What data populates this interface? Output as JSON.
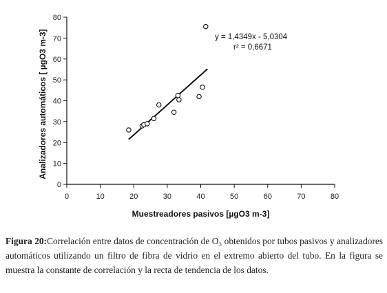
{
  "chart_data": {
    "type": "scatter",
    "title": "",
    "xlabel": "Muestreadores pasivos [µgO3 m-3]",
    "ylabel": "Analizadores automáticos [ µgO3 m-3]",
    "xlim": [
      0,
      80
    ],
    "ylim": [
      0,
      80
    ],
    "xticks": [
      "0",
      "10",
      "20",
      "30",
      "40",
      "50",
      "60",
      "70",
      "80"
    ],
    "yticks": [
      "0",
      "10",
      "20",
      "30",
      "40",
      "50",
      "60",
      "70",
      "80"
    ],
    "grid": false,
    "legend": "none",
    "series": [
      {
        "x": [
          18.5,
          22.5,
          23,
          24,
          26,
          27.5,
          32,
          33.2,
          33.5,
          39.5,
          40.5,
          41.5
        ],
        "y": [
          26,
          28,
          28.5,
          29,
          31.5,
          38,
          34.5,
          42.5,
          40.5,
          42,
          46.5,
          75.5
        ]
      }
    ],
    "trendline": {
      "slope": 1.4349,
      "intercept": -5.0304,
      "x_range": [
        18.5,
        42
      ]
    },
    "annotations": {
      "equation": "y = 1,4349x - 5,0304",
      "r2": "r² = 0,6671"
    },
    "colors": {
      "markers": "#111111",
      "trendline": "#111111",
      "axes": "#111111"
    }
  },
  "caption": {
    "lead": "Figura 20:",
    "text": "Correlación entre datos de concentración de O₃ obtenidos por tubos pasivos y analizadores automáticos utilizando un filtro de fibra de vidrio en el extremo abierto del tubo. En la figura se muestra la constante de correlación y la recta de tendencia de los datos."
  }
}
